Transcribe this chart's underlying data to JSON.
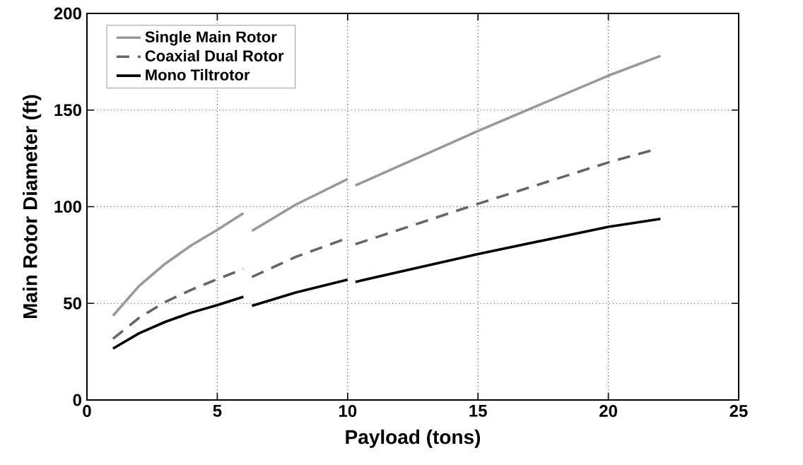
{
  "chart_data": {
    "type": "line",
    "xlabel": "Payload (tons)",
    "ylabel": "Main Rotor Diameter (ft)",
    "xlim": [
      0,
      25
    ],
    "ylim": [
      0,
      200
    ],
    "xticks": [
      0,
      5,
      10,
      15,
      20,
      25
    ],
    "yticks": [
      0,
      50,
      100,
      150,
      200
    ],
    "grid": true,
    "legend": "top left",
    "marker": "none",
    "series": [
      {
        "name": "Single Main Rotor",
        "color": "#999999",
        "line_style": "solid",
        "x": [
          1,
          2,
          3,
          4,
          5,
          6,
          6.15,
          6.33,
          8,
          10,
          10.15,
          10.3,
          15,
          20,
          22
        ],
        "values": [
          43.6,
          59,
          70.5,
          80,
          88,
          96.6,
          null,
          87.5,
          101,
          114.3,
          null,
          111,
          139.2,
          167.8,
          178
        ]
      },
      {
        "name": "Coaxial Dual Rotor",
        "color": "#666666",
        "line_style": "dashed",
        "x": [
          1,
          2,
          3,
          4,
          5,
          6,
          6.15,
          6.33,
          8,
          10,
          10.15,
          10.3,
          15,
          20,
          21.7
        ],
        "values": [
          31.7,
          42.5,
          50.7,
          57,
          62.5,
          67.8,
          null,
          63.7,
          74,
          83.8,
          null,
          80.6,
          101.5,
          122.9,
          129.3
        ]
      },
      {
        "name": "Mono Tiltrotor",
        "color": "#000000",
        "line_style": "solid",
        "x": [
          1,
          2,
          3,
          4,
          5,
          6,
          6.15,
          6.33,
          8,
          10,
          10.15,
          10.3,
          15,
          20,
          22
        ],
        "values": [
          26.6,
          34.5,
          40.4,
          45.2,
          49.1,
          53.4,
          null,
          48.7,
          55.6,
          62.2,
          null,
          61.1,
          75.5,
          89.6,
          93.7
        ]
      }
    ]
  }
}
